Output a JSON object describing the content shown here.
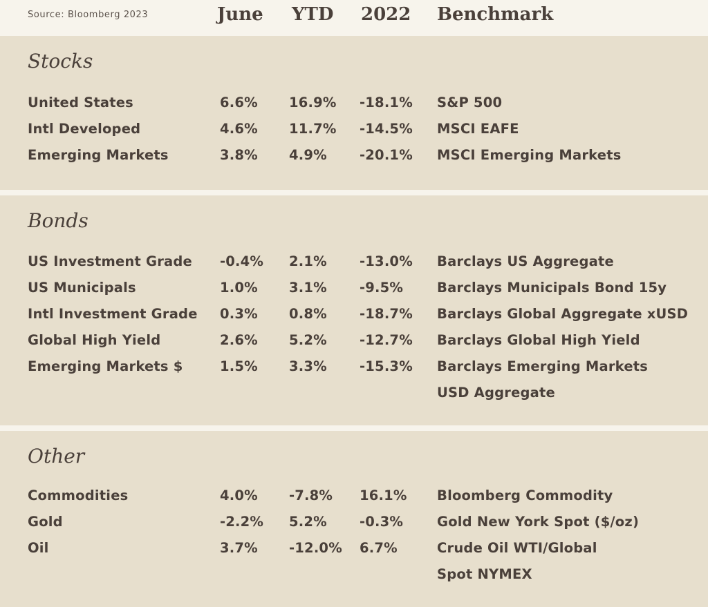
{
  "header": {
    "source": "Source:  Bloomberg 2023",
    "columns": {
      "june": "June",
      "ytd": "YTD",
      "y2022": "2022",
      "benchmark": "Benchmark"
    }
  },
  "sections": {
    "stocks": {
      "title": "Stocks",
      "rows": [
        {
          "name": "United States",
          "june": "6.6%",
          "ytd": "16.9%",
          "y2022": "-18.1%",
          "benchmark": "S&P 500"
        },
        {
          "name": "Intl Developed",
          "june": "4.6%",
          "ytd": "11.7%",
          "y2022": "-14.5%",
          "benchmark": "MSCI EAFE"
        },
        {
          "name": "Emerging Markets",
          "june": "3.8%",
          "ytd": "4.9%",
          "y2022": "-20.1%",
          "benchmark": "MSCI Emerging Markets"
        }
      ]
    },
    "bonds": {
      "title": "Bonds",
      "rows": [
        {
          "name": "US Investment Grade",
          "june": "-0.4%",
          "ytd": "2.1%",
          "y2022": "-13.0%",
          "benchmark": "Barclays US Aggregate"
        },
        {
          "name": "US Municipals",
          "june": "1.0%",
          "ytd": "3.1%",
          "y2022": "-9.5%",
          "benchmark": "Barclays Municipals Bond 15y"
        },
        {
          "name": "Intl Investment Grade",
          "june": "0.3%",
          "ytd": "0.8%",
          "y2022": "-18.7%",
          "benchmark": "Barclays Global Aggregate xUSD"
        },
        {
          "name": "Global High Yield",
          "june": "2.6%",
          "ytd": "5.2%",
          "y2022": "-12.7%",
          "benchmark": "Barclays Global High Yield"
        },
        {
          "name": "Emerging Markets $",
          "june": "1.5%",
          "ytd": "3.3%",
          "y2022": "-15.3%",
          "benchmark": "Barclays Emerging Markets",
          "benchmark_line2": "USD Aggregate"
        }
      ]
    },
    "other": {
      "title": "Other",
      "rows": [
        {
          "name": "Commodities",
          "june": "4.0%",
          "ytd": "-7.8%",
          "y2022": "16.1%",
          "benchmark": "Bloomberg Commodity"
        },
        {
          "name": "Gold",
          "june": "-2.2%",
          "ytd": "5.2%",
          "y2022": "-0.3%",
          "benchmark": "Gold New York Spot ($/oz)"
        },
        {
          "name": "Oil",
          "june": "3.7%",
          "ytd": "-12.0%",
          "y2022": "6.7%",
          "benchmark": "Crude Oil WTI/Global",
          "benchmark_line2": "Spot NYMEX"
        }
      ]
    }
  }
}
